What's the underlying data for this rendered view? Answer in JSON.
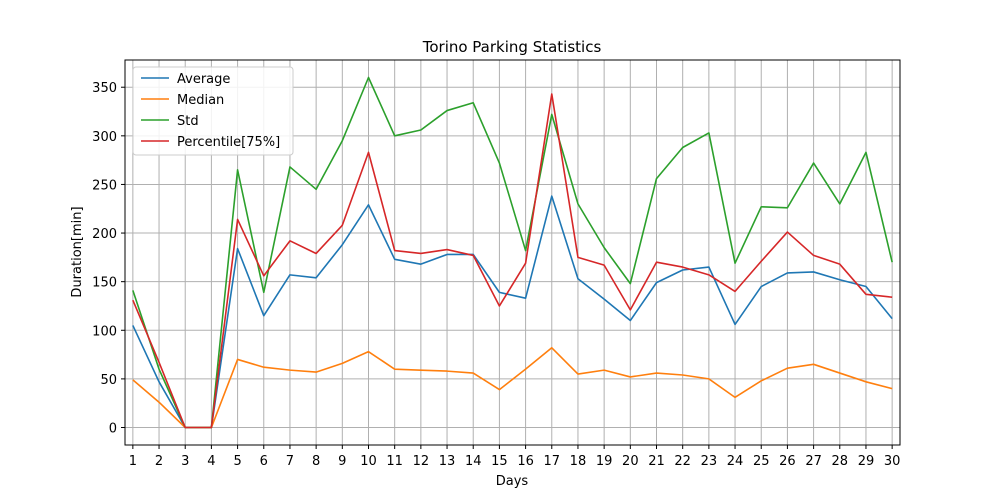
{
  "chart_data": {
    "type": "line",
    "title": "Torino Parking Statistics",
    "xlabel": "Days",
    "ylabel": "Duration[min]",
    "x": [
      1,
      2,
      3,
      4,
      5,
      6,
      7,
      8,
      9,
      10,
      11,
      12,
      13,
      14,
      15,
      16,
      17,
      18,
      19,
      20,
      21,
      22,
      23,
      24,
      25,
      26,
      27,
      28,
      29,
      30
    ],
    "xlim": [
      0.7,
      30.3
    ],
    "ylim": [
      -18,
      378
    ],
    "yticks": [
      0,
      50,
      100,
      150,
      200,
      250,
      300,
      350
    ],
    "grid": true,
    "legend_position": "top-left",
    "series": [
      {
        "name": "Average",
        "color": "#1f77b4",
        "values": [
          105,
          47,
          0,
          0,
          184,
          115,
          157,
          154,
          188,
          229,
          173,
          168,
          178,
          178,
          139,
          133,
          238,
          153,
          132,
          110,
          149,
          162,
          165,
          106,
          145,
          159,
          160,
          152,
          145,
          112
        ]
      },
      {
        "name": "Median",
        "color": "#ff7f0e",
        "values": [
          49,
          26,
          0,
          0,
          70,
          62,
          59,
          57,
          66,
          78,
          60,
          59,
          58,
          56,
          39,
          60,
          82,
          55,
          59,
          52,
          56,
          54,
          50,
          31,
          48,
          61,
          65,
          56,
          47,
          40
        ]
      },
      {
        "name": "Std",
        "color": "#2ca02c",
        "values": [
          141,
          60,
          0,
          0,
          265,
          139,
          268,
          245,
          295,
          360,
          300,
          306,
          326,
          334,
          272,
          182,
          322,
          230,
          185,
          148,
          256,
          288,
          303,
          169,
          227,
          226,
          272,
          230,
          283,
          170
        ]
      },
      {
        "name": "Percentile[75%]",
        "color": "#d62728",
        "values": [
          131,
          67,
          0,
          0,
          214,
          156,
          192,
          179,
          208,
          283,
          182,
          179,
          183,
          177,
          125,
          169,
          343,
          175,
          167,
          121,
          170,
          165,
          157,
          140,
          171,
          201,
          177,
          168,
          137,
          134
        ]
      }
    ]
  }
}
